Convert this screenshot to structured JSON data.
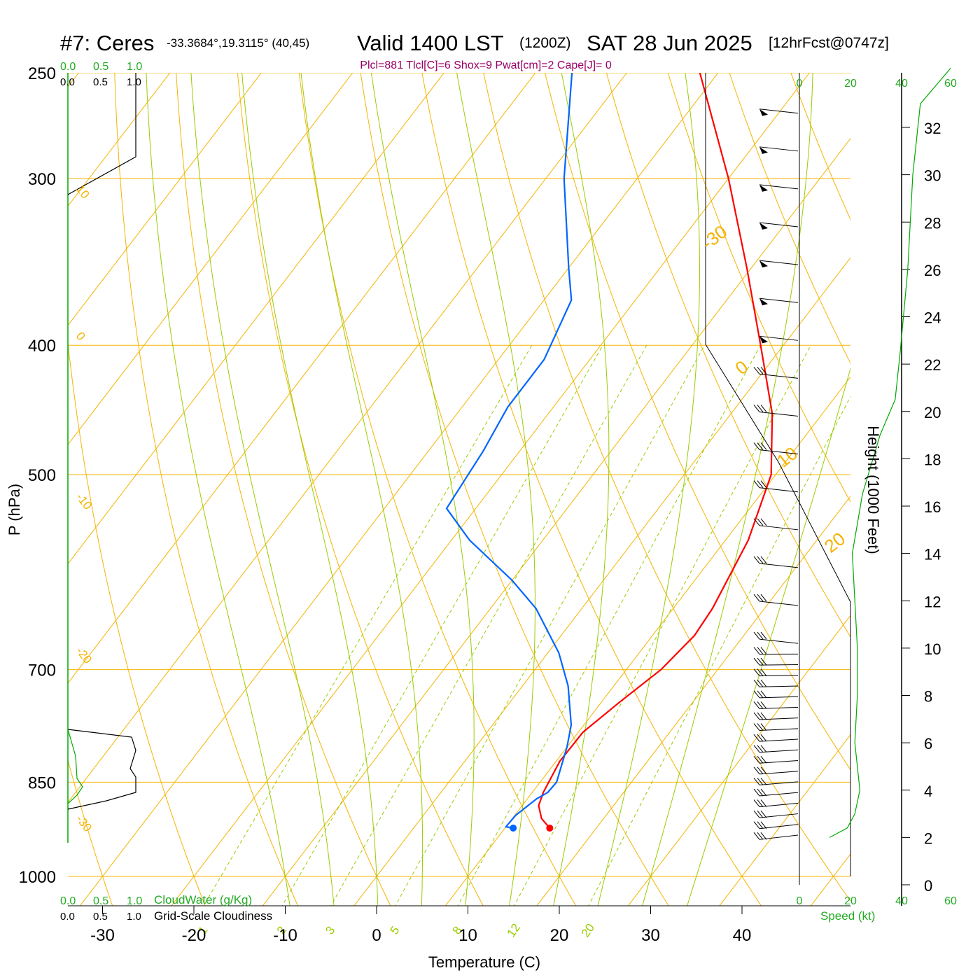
{
  "header": {
    "station": "#7: Ceres",
    "coords": "-33.3684°,19.3115° (40,45)",
    "valid": "Valid 1400 LST",
    "zulu": "(1200Z)",
    "date": "SAT 28 Jun 2025",
    "fcst": "[12hrFcst@0747z]",
    "indices": "Plcl=881 Tlcl[C]=6 Shox=9 Pwat[cm]=2 Cape[J]= 0"
  },
  "colors": {
    "temperature": "#ff0000",
    "dewpoint": "#0066ff",
    "isotherm": "#f5b400",
    "dry_adiabat": "#f5b400",
    "moist_adiabat": "#99cc00",
    "mixing_ratio": "#99cc00",
    "cloudwater": "#00aa00",
    "title_indices": "#990066"
  },
  "chart_data": {
    "type": "skew-t",
    "xlabel": "Temperature (C)",
    "ylabel": "P (hPa)",
    "y2label": "Height (1000 Feet)",
    "x_ticks": [
      -30,
      -20,
      -10,
      0,
      10,
      20,
      30,
      40
    ],
    "p_ticks": [
      250,
      300,
      400,
      500,
      700,
      850,
      1000
    ],
    "p_range": [
      1000,
      250
    ],
    "height_ticks": [
      0,
      2,
      4,
      6,
      8,
      10,
      12,
      14,
      16,
      18,
      20,
      22,
      24,
      26,
      28,
      30,
      32
    ],
    "temperature_profile": [
      {
        "p": 920,
        "t": 14.9
      },
      {
        "p": 905,
        "t": 13.2
      },
      {
        "p": 885,
        "t": 11.8
      },
      {
        "p": 865,
        "t": 11.2
      },
      {
        "p": 820,
        "t": 10.4
      },
      {
        "p": 780,
        "t": 10.5
      },
      {
        "p": 740,
        "t": 12.0
      },
      {
        "p": 700,
        "t": 13.8
      },
      {
        "p": 660,
        "t": 14.6
      },
      {
        "p": 630,
        "t": 14.3
      },
      {
        "p": 560,
        "t": 12.5
      },
      {
        "p": 500,
        "t": 9.5
      },
      {
        "p": 450,
        "t": 4.5
      },
      {
        "p": 400,
        "t": -2.5
      },
      {
        "p": 350,
        "t": -10.5
      },
      {
        "p": 300,
        "t": -20.0
      },
      {
        "p": 250,
        "t": -32.0
      }
    ],
    "dewpoint_profile": [
      {
        "p": 920,
        "t": 10.9
      },
      {
        "p": 918,
        "t": 10.0
      },
      {
        "p": 900,
        "t": 10.1
      },
      {
        "p": 875,
        "t": 11.0
      },
      {
        "p": 865,
        "t": 11.7
      },
      {
        "p": 850,
        "t": 11.8
      },
      {
        "p": 800,
        "t": 10.0
      },
      {
        "p": 770,
        "t": 8.6
      },
      {
        "p": 720,
        "t": 5.0
      },
      {
        "p": 680,
        "t": 1.2
      },
      {
        "p": 630,
        "t": -5.0
      },
      {
        "p": 600,
        "t": -10.0
      },
      {
        "p": 560,
        "t": -18.0
      },
      {
        "p": 530,
        "t": -23.2
      },
      {
        "p": 480,
        "t": -24.0
      },
      {
        "p": 445,
        "t": -25.0
      },
      {
        "p": 410,
        "t": -25.0
      },
      {
        "p": 370,
        "t": -27.0
      },
      {
        "p": 350,
        "t": -30.0
      },
      {
        "p": 300,
        "t": -38.0
      },
      {
        "p": 250,
        "t": -46.0
      }
    ],
    "surface": {
      "p": 920,
      "t": 14.9,
      "td": 10.9
    },
    "height_profile_wind_speed_kt": [
      {
        "h": 2.0,
        "s": 12
      },
      {
        "h": 2.4,
        "s": 19
      },
      {
        "h": 3.0,
        "s": 22
      },
      {
        "h": 4.0,
        "s": 24
      },
      {
        "h": 6.0,
        "s": 22
      },
      {
        "h": 8.0,
        "s": 23
      },
      {
        "h": 10.0,
        "s": 23
      },
      {
        "h": 14.0,
        "s": 21
      },
      {
        "h": 16.5,
        "s": 25
      },
      {
        "h": 19.0,
        "s": 32
      },
      {
        "h": 20.5,
        "s": 38
      },
      {
        "h": 22.5,
        "s": 40
      },
      {
        "h": 26.0,
        "s": 43
      },
      {
        "h": 30.0,
        "s": 45
      },
      {
        "h": 33.0,
        "s": 48
      },
      {
        "h": 34.5,
        "s": 60
      }
    ],
    "isotherm_labels": [
      "-30",
      "-20",
      "-10",
      "0",
      "10",
      "20",
      "30"
    ],
    "mixing_ratio_labels": [
      "1",
      "2",
      "3",
      "5",
      "8",
      "12",
      "20"
    ],
    "side_panel": {
      "cloudwater_label": "CloudWater (g/Kg)",
      "cloudiness_label": "Grid-Scale Cloudiness",
      "scale": [
        "0.0",
        "0.5",
        "1.0"
      ]
    },
    "speed_panel": {
      "label": "Speed (kt)",
      "ticks": [
        "0",
        "20",
        "40",
        "60"
      ]
    }
  }
}
